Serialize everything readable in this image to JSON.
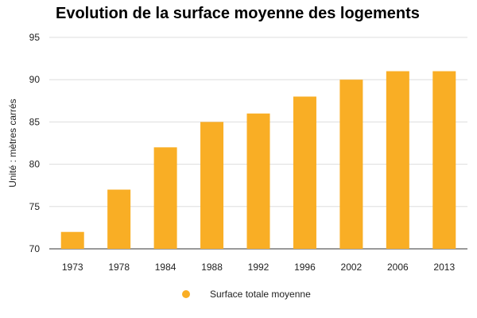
{
  "chart_data": {
    "type": "bar",
    "title": "Evolution de la surface moyenne des logements",
    "xlabel": "",
    "ylabel": "Unité : mètres carrés",
    "categories": [
      "1973",
      "1978",
      "1984",
      "1988",
      "1992",
      "1996",
      "2002",
      "2006",
      "2013"
    ],
    "series": [
      {
        "name": "Surface totale moyenne",
        "values": [
          72,
          77,
          82,
          85,
          86,
          88,
          90,
          91,
          91
        ]
      }
    ],
    "ylim": [
      70,
      95
    ],
    "yticks": [
      70,
      75,
      80,
      85,
      90,
      95
    ],
    "grid": true,
    "legend_position": "bottom",
    "colors": {
      "bar": "#F9AE25",
      "grid": "#DDDDDD",
      "baseline": "#333333"
    }
  }
}
